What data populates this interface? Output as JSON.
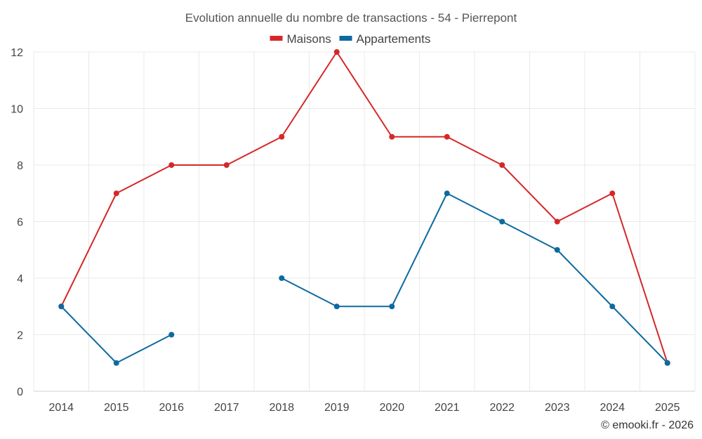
{
  "chart_data": {
    "type": "line",
    "title": "Evolution annuelle du nombre de transactions - 54 - Pierrepont",
    "xlabel": "",
    "ylabel": "",
    "categories": [
      "2014",
      "2015",
      "2016",
      "2017",
      "2018",
      "2019",
      "2020",
      "2021",
      "2022",
      "2023",
      "2024",
      "2025"
    ],
    "ylim": [
      0,
      12
    ],
    "yticks": [
      0,
      2,
      4,
      6,
      8,
      10,
      12
    ],
    "grid": true,
    "legend_position": "top-center",
    "series": [
      {
        "name": "Maisons",
        "color": "#d62728",
        "values": [
          3,
          7,
          8,
          8,
          9,
          12,
          9,
          9,
          8,
          6,
          7,
          1
        ]
      },
      {
        "name": "Appartements",
        "color": "#0d6aa0",
        "values": [
          3,
          1,
          2,
          null,
          4,
          3,
          3,
          7,
          6,
          5,
          3,
          1
        ]
      }
    ]
  },
  "credit": "© emooki.fr - 2026"
}
